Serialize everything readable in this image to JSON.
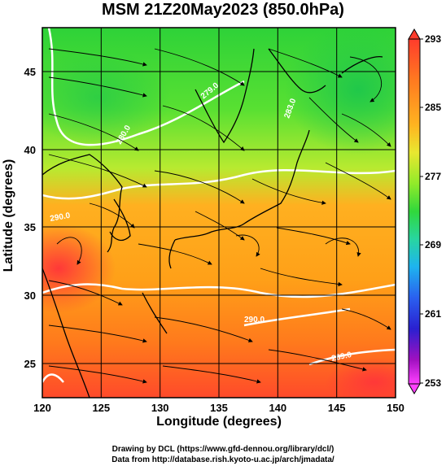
{
  "title": "MSM 21Z20May2023 (850.0hPa)",
  "axes": {
    "xlabel": "Longitude (degrees)",
    "ylabel": "Latitude  (degrees)",
    "xticks": [
      "120",
      "125",
      "130",
      "135",
      "140",
      "145",
      "150"
    ],
    "yticks": [
      "25",
      "30",
      "35",
      "40",
      "45"
    ]
  },
  "colorbar": {
    "ticks": [
      "293",
      "285",
      "277",
      "269",
      "261",
      "253"
    ],
    "colors": [
      "#ff4040",
      "#ff7a20",
      "#ffae1e",
      "#f2e830",
      "#a8ee2a",
      "#3ed83a",
      "#28d6a0",
      "#1eb4ef",
      "#2a60ef",
      "#2a20d0",
      "#a010c0",
      "#ff40ff"
    ]
  },
  "contour_labels": [
    "280.0",
    "279.0",
    "290.0",
    "290.0",
    "289.0",
    "283.0"
  ],
  "credits": {
    "line1": "Drawing by DCL (https://www.gfd-dennou.org/library/dcl/)",
    "line2": "Data from http://database.rish.kyoto-u.ac.jp/arch/jmadata/"
  }
}
